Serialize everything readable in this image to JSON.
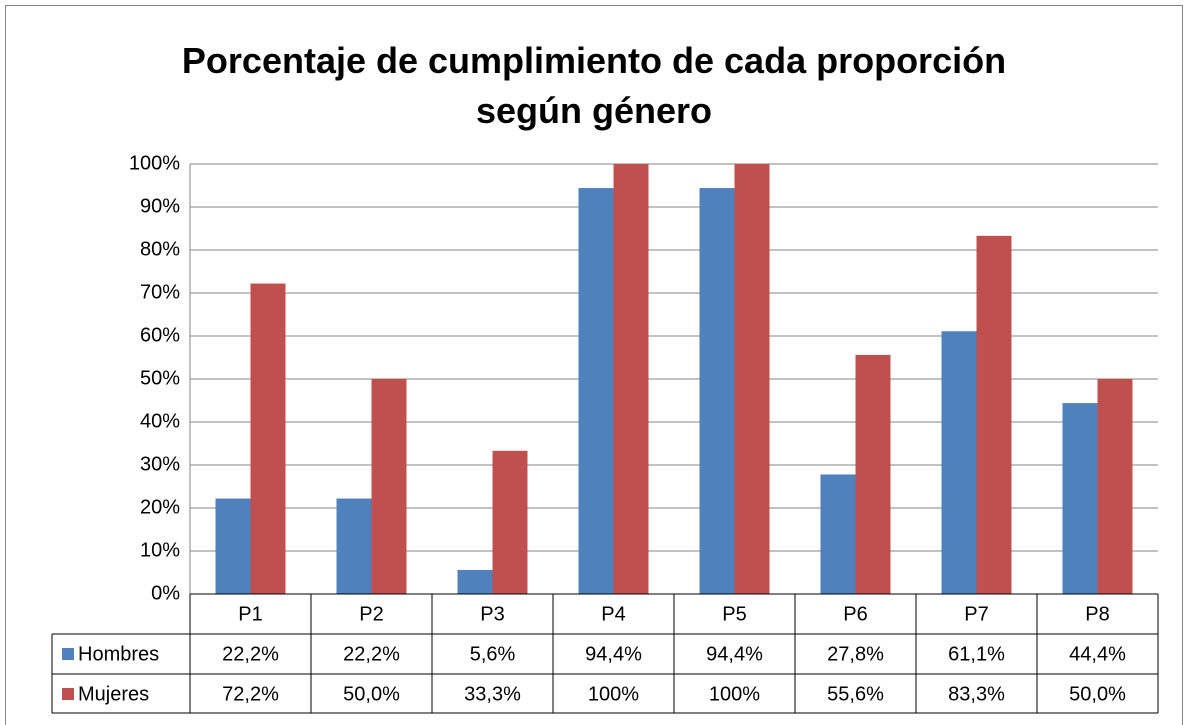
{
  "chart_data": {
    "type": "bar",
    "title": "Porcentaje de cumplimiento de cada proporción según género",
    "categories": [
      "P1",
      "P2",
      "P3",
      "P4",
      "P5",
      "P6",
      "P7",
      "P8"
    ],
    "series": [
      {
        "name": "Hombres",
        "color": "#4f81bd",
        "values": [
          22.2,
          22.2,
          5.6,
          94.4,
          94.4,
          27.8,
          61.1,
          44.4
        ],
        "value_labels": [
          "22,2%",
          "22,2%",
          "5,6%",
          "94,4%",
          "94,4%",
          "27,8%",
          "61,1%",
          "44,4%"
        ]
      },
      {
        "name": "Mujeres",
        "color": "#c0504d",
        "values": [
          72.2,
          50.0,
          33.3,
          100,
          100,
          55.6,
          83.3,
          50.0
        ],
        "value_labels": [
          "72,2%",
          "50,0%",
          "33,3%",
          "100%",
          "100%",
          "55,6%",
          "83,3%",
          "50,0%"
        ]
      }
    ],
    "ylim": [
      0,
      100
    ],
    "yticks": [
      {
        "value": 0,
        "label": "0%"
      },
      {
        "value": 10,
        "label": "10%"
      },
      {
        "value": 20,
        "label": "20%"
      },
      {
        "value": 30,
        "label": "30%"
      },
      {
        "value": 40,
        "label": "40%"
      },
      {
        "value": 50,
        "label": "50%"
      },
      {
        "value": 60,
        "label": "60%"
      },
      {
        "value": 70,
        "label": "70%"
      },
      {
        "value": 80,
        "label": "80%"
      },
      {
        "value": 90,
        "label": "90%"
      },
      {
        "value": 100,
        "label": "100%"
      }
    ],
    "grid": true
  }
}
